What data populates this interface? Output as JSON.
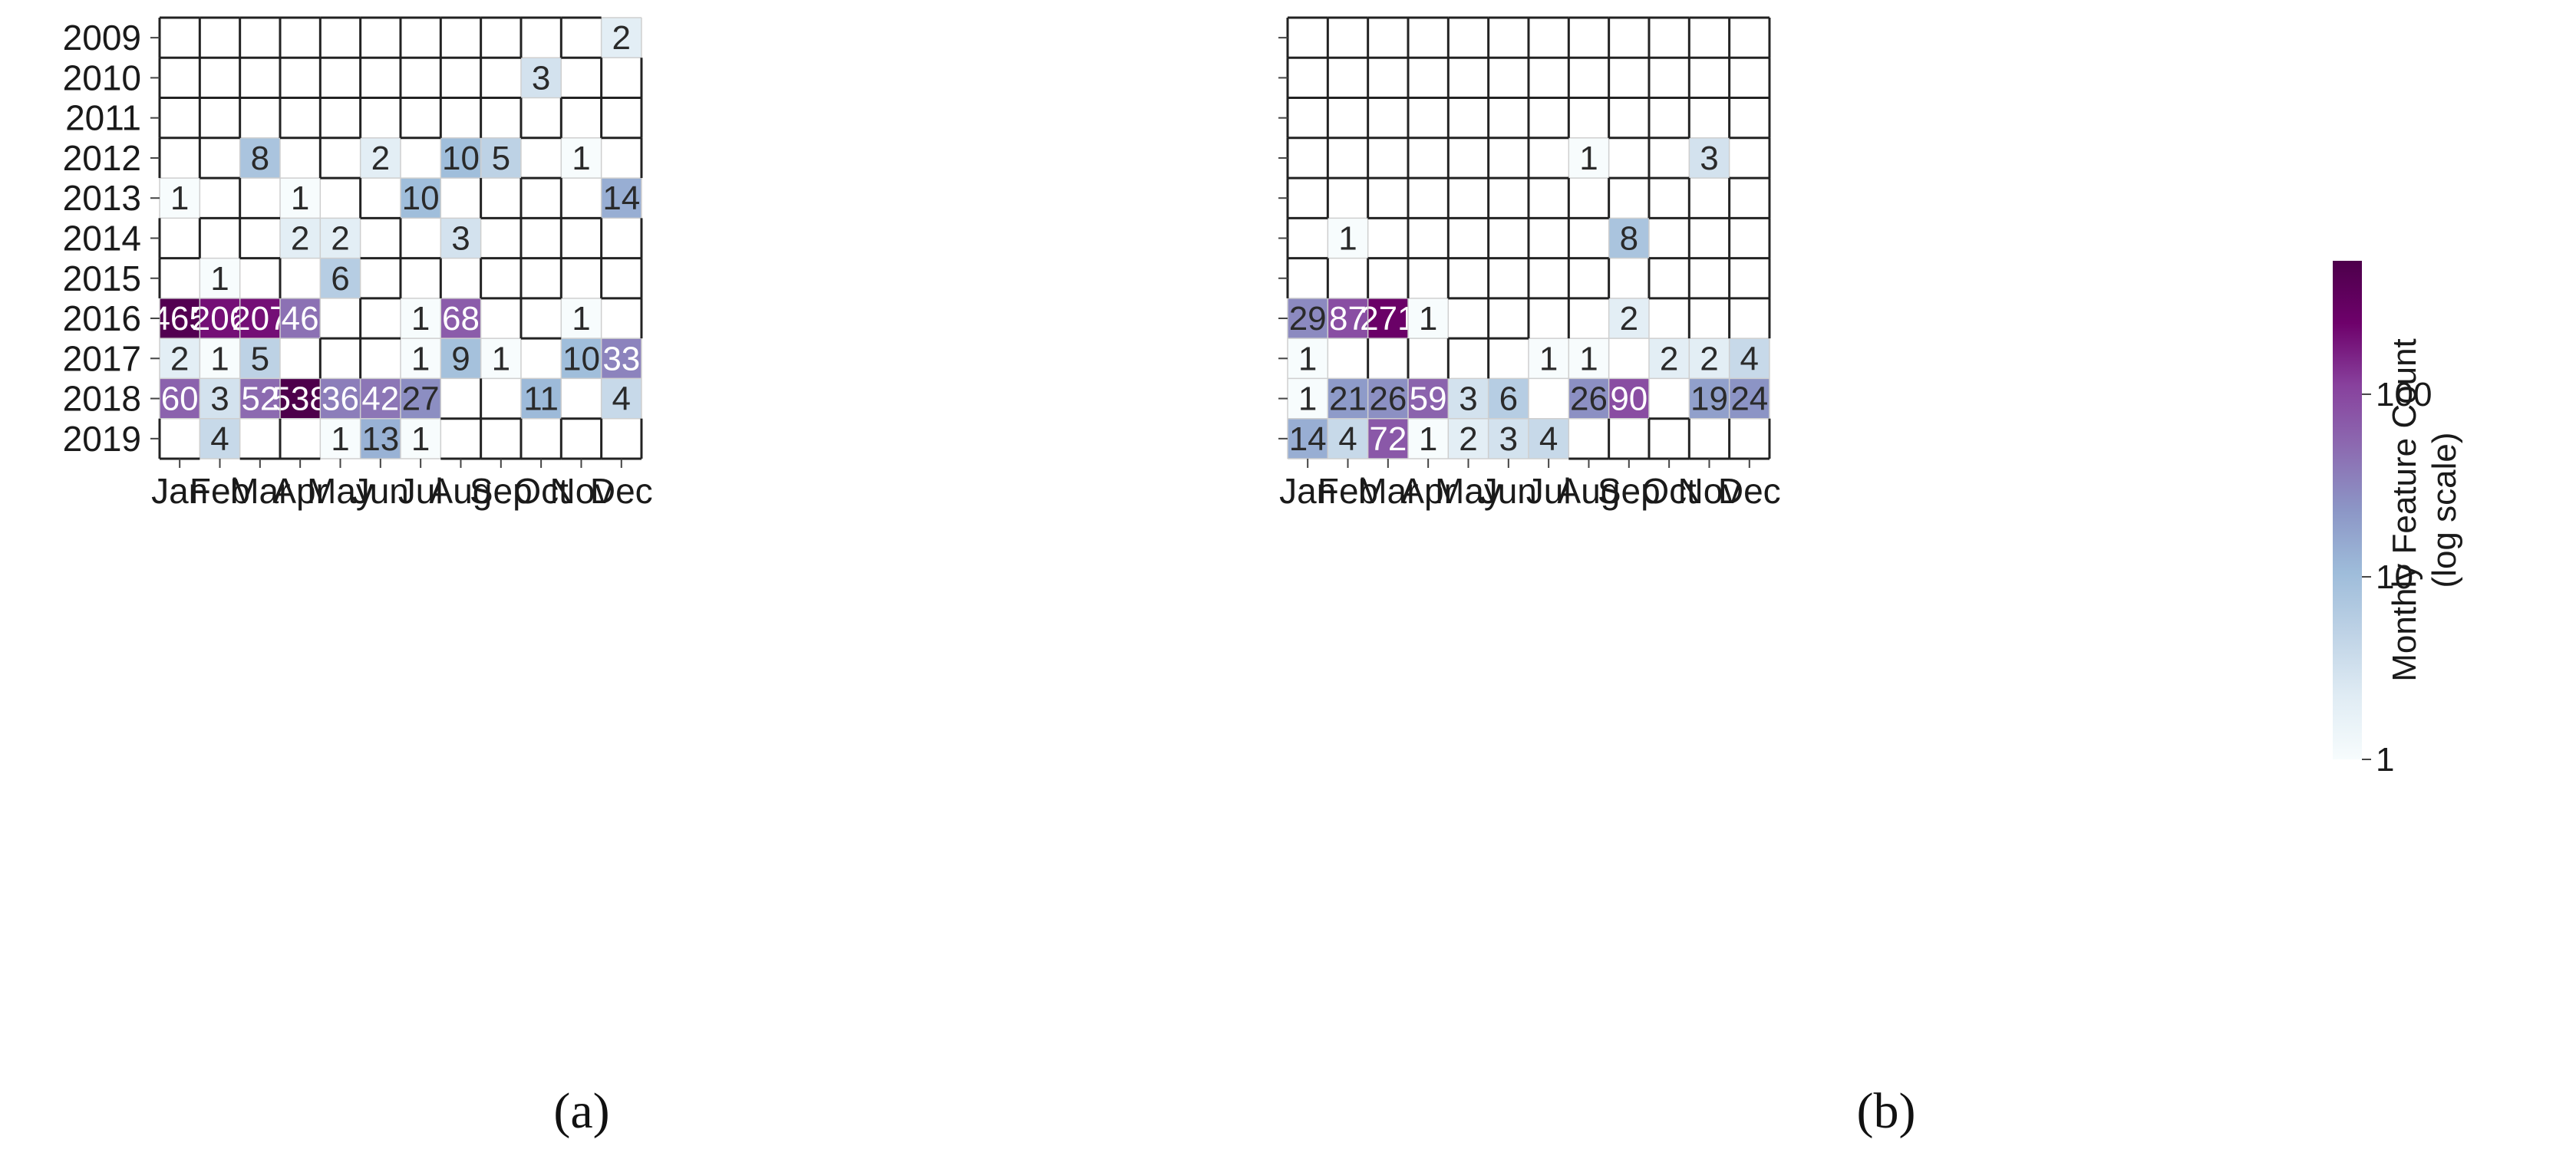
{
  "chart_data": [
    {
      "type": "heatmap",
      "panel_label": "(a)",
      "x_categories": [
        "Jan",
        "Feb",
        "Mar",
        "Apr",
        "May",
        "Jun",
        "Jul",
        "Aug",
        "Sep",
        "Oct",
        "Nov",
        "Dec"
      ],
      "y_categories": [
        "2009",
        "2010",
        "2011",
        "2012",
        "2013",
        "2014",
        "2015",
        "2016",
        "2017",
        "2018",
        "2019"
      ],
      "values": [
        [
          null,
          null,
          null,
          null,
          null,
          null,
          null,
          null,
          null,
          null,
          null,
          2
        ],
        [
          null,
          null,
          null,
          null,
          null,
          null,
          null,
          null,
          null,
          3,
          null,
          null
        ],
        [
          null,
          null,
          null,
          null,
          null,
          null,
          null,
          null,
          null,
          null,
          null,
          null
        ],
        [
          null,
          null,
          8,
          null,
          null,
          2,
          null,
          10,
          5,
          null,
          1,
          null
        ],
        [
          1,
          null,
          null,
          1,
          null,
          null,
          10,
          null,
          null,
          null,
          null,
          14
        ],
        [
          null,
          null,
          null,
          2,
          2,
          null,
          null,
          3,
          null,
          null,
          null,
          null
        ],
        [
          null,
          1,
          null,
          null,
          6,
          null,
          null,
          null,
          null,
          null,
          null,
          null
        ],
        [
          465,
          206,
          207,
          46,
          null,
          null,
          1,
          68,
          null,
          null,
          1,
          null
        ],
        [
          2,
          1,
          5,
          null,
          null,
          null,
          1,
          9,
          1,
          null,
          10,
          33
        ],
        [
          60,
          3,
          52,
          538,
          36,
          42,
          27,
          null,
          null,
          11,
          null,
          4
        ],
        [
          null,
          4,
          null,
          null,
          1,
          13,
          1,
          null,
          null,
          null,
          null,
          null
        ]
      ],
      "color_scale": "log"
    },
    {
      "type": "heatmap",
      "panel_label": "(b)",
      "x_categories": [
        "Jan",
        "Feb",
        "Mar",
        "Apr",
        "May",
        "Jun",
        "Jul",
        "Aug",
        "Sep",
        "Oct",
        "Nov",
        "Dec"
      ],
      "y_categories": [
        "2009",
        "2010",
        "2011",
        "2012",
        "2013",
        "2014",
        "2015",
        "2016",
        "2017",
        "2018",
        "2019"
      ],
      "values": [
        [
          null,
          null,
          null,
          null,
          null,
          null,
          null,
          null,
          null,
          null,
          null,
          null
        ],
        [
          null,
          null,
          null,
          null,
          null,
          null,
          null,
          null,
          null,
          null,
          null,
          null
        ],
        [
          null,
          null,
          null,
          null,
          null,
          null,
          null,
          null,
          null,
          null,
          null,
          null
        ],
        [
          null,
          null,
          null,
          null,
          null,
          null,
          null,
          1,
          null,
          null,
          3,
          null
        ],
        [
          null,
          null,
          null,
          null,
          null,
          null,
          null,
          null,
          null,
          null,
          null,
          null
        ],
        [
          null,
          1,
          null,
          null,
          null,
          null,
          null,
          null,
          8,
          null,
          null,
          null
        ],
        [
          null,
          null,
          null,
          null,
          null,
          null,
          null,
          null,
          null,
          null,
          null,
          null
        ],
        [
          29,
          87,
          271,
          1,
          null,
          null,
          null,
          null,
          2,
          null,
          null,
          null
        ],
        [
          1,
          null,
          null,
          null,
          null,
          null,
          1,
          1,
          null,
          2,
          2,
          4
        ],
        [
          1,
          21,
          26,
          59,
          3,
          6,
          null,
          26,
          90,
          null,
          19,
          24
        ],
        [
          14,
          4,
          72,
          1,
          2,
          3,
          4,
          null,
          null,
          null,
          null,
          null
        ]
      ],
      "color_scale": "log"
    }
  ],
  "colorbar": {
    "title_line1": "Monthly Feature Count",
    "title_line2": "(log scale)",
    "ticks": [
      {
        "value": 1,
        "label": "1"
      },
      {
        "value": 10,
        "label": "10"
      },
      {
        "value": 100,
        "label": "100"
      }
    ],
    "range": [
      1,
      538
    ],
    "colors": [
      "#f7fcfd",
      "#e0ecf4",
      "#bfd3e6",
      "#9ebcda",
      "#8c96c6",
      "#8c6bb1",
      "#88419d",
      "#6e016b",
      "#4d004b"
    ]
  }
}
